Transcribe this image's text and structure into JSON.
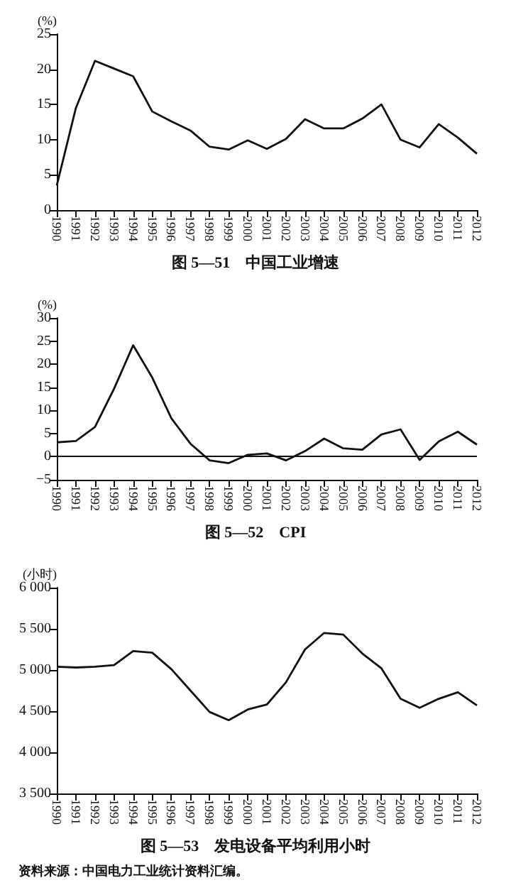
{
  "chart_data": [
    {
      "type": "line",
      "title": "图 5—51　中国工业增速",
      "ylabel": "(%)",
      "categories": [
        "1990",
        "1991",
        "1992",
        "1993",
        "1994",
        "1995",
        "1996",
        "1997",
        "1998",
        "1999",
        "2000",
        "2001",
        "2002",
        "2003",
        "2004",
        "2005",
        "2006",
        "2007",
        "2008",
        "2009",
        "2010",
        "2011",
        "2012"
      ],
      "values": [
        3.5,
        14.5,
        21.2,
        20.1,
        19,
        14,
        12.6,
        11.3,
        9,
        8.6,
        9.9,
        8.7,
        10.1,
        12.9,
        11.6,
        11.6,
        13,
        15,
        10,
        8.9,
        12.2,
        10.3,
        8
      ],
      "color": "#111111",
      "ylim": [
        0,
        25
      ],
      "yticks": [
        0,
        5,
        10,
        15,
        20,
        25
      ]
    },
    {
      "type": "line",
      "title": "图 5—52　CPI",
      "ylabel": "(%)",
      "categories": [
        "1990",
        "1991",
        "1992",
        "1993",
        "1994",
        "1995",
        "1996",
        "1997",
        "1998",
        "1999",
        "2000",
        "2001",
        "2002",
        "2003",
        "2004",
        "2005",
        "2006",
        "2007",
        "2008",
        "2009",
        "2010",
        "2011",
        "2012"
      ],
      "values": [
        3.1,
        3.4,
        6.4,
        14.7,
        24.1,
        17.1,
        8.3,
        2.8,
        -0.8,
        -1.4,
        0.4,
        0.7,
        -0.8,
        1.2,
        3.9,
        1.8,
        1.5,
        4.8,
        5.9,
        -0.7,
        3.3,
        5.4,
        2.6
      ],
      "color": "#111111",
      "ylim": [
        -5,
        30
      ],
      "yticks": [
        -5,
        0,
        5,
        10,
        15,
        20,
        25,
        30
      ],
      "ref_lines": [
        {
          "axis": "y",
          "value": 0,
          "color": "#111111"
        }
      ]
    },
    {
      "type": "line",
      "title": "图 5—53　发电设备平均利用小时",
      "ylabel": "(小时)",
      "categories": [
        "1990",
        "1991",
        "1992",
        "1993",
        "1994",
        "1995",
        "1996",
        "1997",
        "1998",
        "1999",
        "2000",
        "2001",
        "2002",
        "2003",
        "2004",
        "2005",
        "2006",
        "2007",
        "2008",
        "2009",
        "2010",
        "2011",
        "2012"
      ],
      "values": [
        5040,
        5030,
        5040,
        5060,
        5230,
        5210,
        5010,
        4750,
        4490,
        4390,
        4520,
        4580,
        4850,
        5250,
        5450,
        5430,
        5200,
        5020,
        4650,
        4540,
        4650,
        4730,
        4570
      ],
      "color": "#111111",
      "ylim": [
        3500,
        6000
      ],
      "yticks": [
        {
          "value": 3500,
          "label": "3 500"
        },
        {
          "value": 4000,
          "label": "4 000"
        },
        {
          "value": 4500,
          "label": "4 500"
        },
        {
          "value": 5000,
          "label": "5 000"
        },
        {
          "value": 5500,
          "label": "5 500"
        },
        {
          "value": 6000,
          "label": "6 000"
        }
      ],
      "annotations": [
        "资料来源：中国电力工业统计资料汇编。"
      ]
    }
  ]
}
